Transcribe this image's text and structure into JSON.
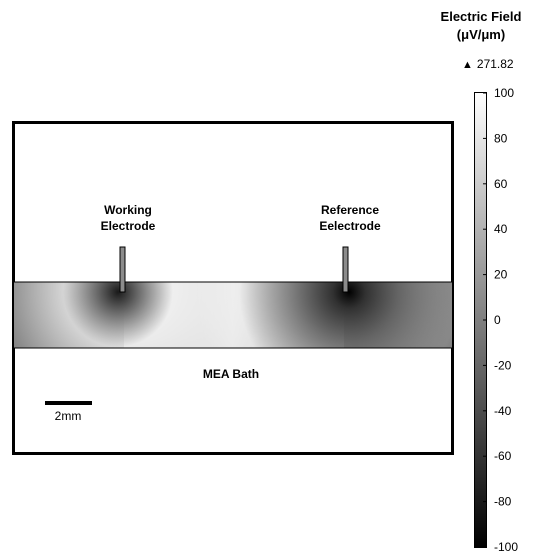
{
  "colorbar": {
    "title_line1": "Electric Field",
    "title_line2": "(μV/μm)",
    "max_marker": "▲",
    "max_value": "271.82",
    "ticks": [
      "100",
      "80",
      "60",
      "40",
      "20",
      "0",
      "-20",
      "-40",
      "-60",
      "-80",
      "-100"
    ],
    "range": [
      -100,
      100
    ]
  },
  "diagram": {
    "working_electrode_line1": "Working",
    "working_electrode_line2": "Electrode",
    "reference_electrode_line1": "Reference",
    "reference_electrode_line2": "Eelectrode",
    "bath_label": "MEA Bath",
    "scale_bar_label": "2mm"
  },
  "colors": {
    "frame": "#000000",
    "electrode": "#8c8c8c",
    "field_low": "#000000",
    "field_high": "#ffffff"
  }
}
